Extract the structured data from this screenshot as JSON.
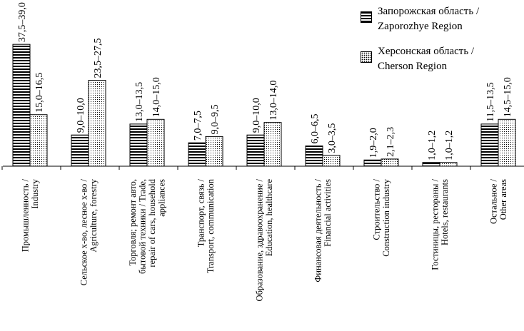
{
  "chart_data": {
    "type": "bar",
    "orientation": "vertical",
    "categories": [
      [
        "Промышленность /",
        "Industry"
      ],
      [
        "Сельское х-во, лесное х-во /",
        "Agriculture, forestry"
      ],
      [
        "Торговля; ремонт авто,",
        "бытовой техники / Trade,",
        "repair of cars, household",
        "appliances"
      ],
      [
        "Транспорт, связь /",
        "Transport, communication"
      ],
      [
        "Образование, здравоохранение /",
        "Education, healthcare"
      ],
      [
        "Финансовая деятельность /",
        "Financial activities"
      ],
      [
        "Строительство /",
        "Construction industry"
      ],
      [
        "Гостиницы, рестораны /",
        "Hotels, restaurants"
      ],
      [
        "Остальное /",
        "Other areas"
      ]
    ],
    "series": [
      {
        "name": [
          "Запорожская область /",
          "Zaporozhye Region"
        ],
        "pattern": "horizontal-stripes",
        "values": [
          39.0,
          10.0,
          13.5,
          7.5,
          10.0,
          6.5,
          2.0,
          1.2,
          13.5
        ],
        "labels": [
          "37,5–39,0",
          "9,0–10,0",
          "13,0–13,5",
          "7,0–7,5",
          "9,0–10,0",
          "6,0–6,5",
          "1,9–2,0",
          "1,0–1,2",
          "11,5–13,5"
        ]
      },
      {
        "name": [
          "Херсонская область /",
          "Cherson Region"
        ],
        "pattern": "dotted",
        "values": [
          16.5,
          27.5,
          15.0,
          9.5,
          14.0,
          3.5,
          2.3,
          1.2,
          15.0
        ],
        "labels": [
          "15,0–16,5",
          "23,5–27,5",
          "14,0–15,0",
          "9,0–9,5",
          "13,0–14,0",
          "3,0–3,5",
          "2,1–2,3",
          "1,0–1,2",
          "14,5–15,0"
        ]
      }
    ],
    "ylim": [
      0,
      40
    ],
    "title": "",
    "xlabel": "",
    "ylabel": "",
    "grid": false,
    "legend_position": "top-right"
  },
  "colors": {
    "ink": "#000000",
    "background": "#ffffff"
  }
}
